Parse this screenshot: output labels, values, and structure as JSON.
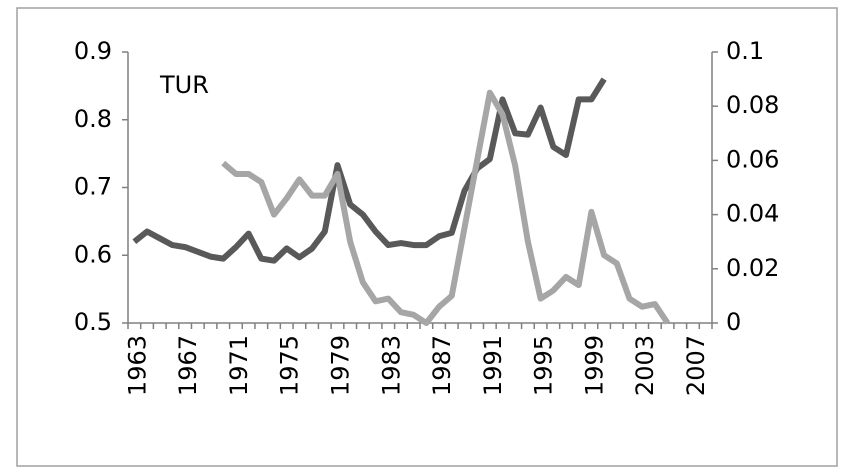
{
  "chart_data": {
    "type": "line",
    "annotation": "TUR",
    "categories": [
      "1963",
      null,
      null,
      null,
      "1967",
      null,
      null,
      null,
      "1971",
      null,
      null,
      null,
      "1975",
      null,
      null,
      null,
      "1979",
      null,
      null,
      null,
      "1983",
      null,
      null,
      null,
      "1987",
      null,
      null,
      null,
      "1991",
      null,
      null,
      null,
      "1995",
      null,
      null,
      null,
      "1999",
      null,
      null,
      null,
      "2003",
      null,
      null,
      null,
      "2007",
      null
    ],
    "series": [
      {
        "color": "#595959",
        "values": [
          0.62,
          0.635,
          0.625,
          0.615,
          0.612,
          0.605,
          0.598,
          0.595,
          0.612,
          0.632,
          0.595,
          0.592,
          0.61,
          0.597,
          0.61,
          0.635,
          0.733,
          0.675,
          0.66,
          0.635,
          0.615,
          0.618,
          0.615,
          0.615,
          0.628,
          0.633,
          0.695,
          0.728,
          0.742,
          0.83,
          0.78,
          0.778,
          0.818,
          0.76,
          0.748,
          0.83,
          0.83,
          0.86,
          null,
          null,
          null,
          null,
          null,
          null,
          null,
          null
        ]
      },
      {
        "color": "#a6a6a6",
        "axis": "y2",
        "values": [
          null,
          null,
          null,
          null,
          null,
          null,
          null,
          0.059,
          0.055,
          0.055,
          0.052,
          0.04,
          0.046,
          0.053,
          0.047,
          0.047,
          0.055,
          0.03,
          0.015,
          0.008,
          0.009,
          0.004,
          0.003,
          0,
          0.006,
          0.01,
          0.035,
          0.06,
          0.085,
          0.077,
          0.058,
          0.03,
          0.009,
          0.012,
          0.017,
          0.014,
          0.041,
          0.025,
          0.022,
          0.009,
          0.006,
          0.007,
          0,
          null,
          null,
          null
        ]
      }
    ],
    "ylim": [
      0.5,
      0.9
    ],
    "yticks": [
      0.5,
      0.6,
      0.7,
      0.8,
      0.9
    ],
    "y2lim": [
      0,
      0.1
    ],
    "y2ticks": [
      0,
      0.02,
      0.04,
      0.06,
      0.08,
      0.1
    ]
  }
}
